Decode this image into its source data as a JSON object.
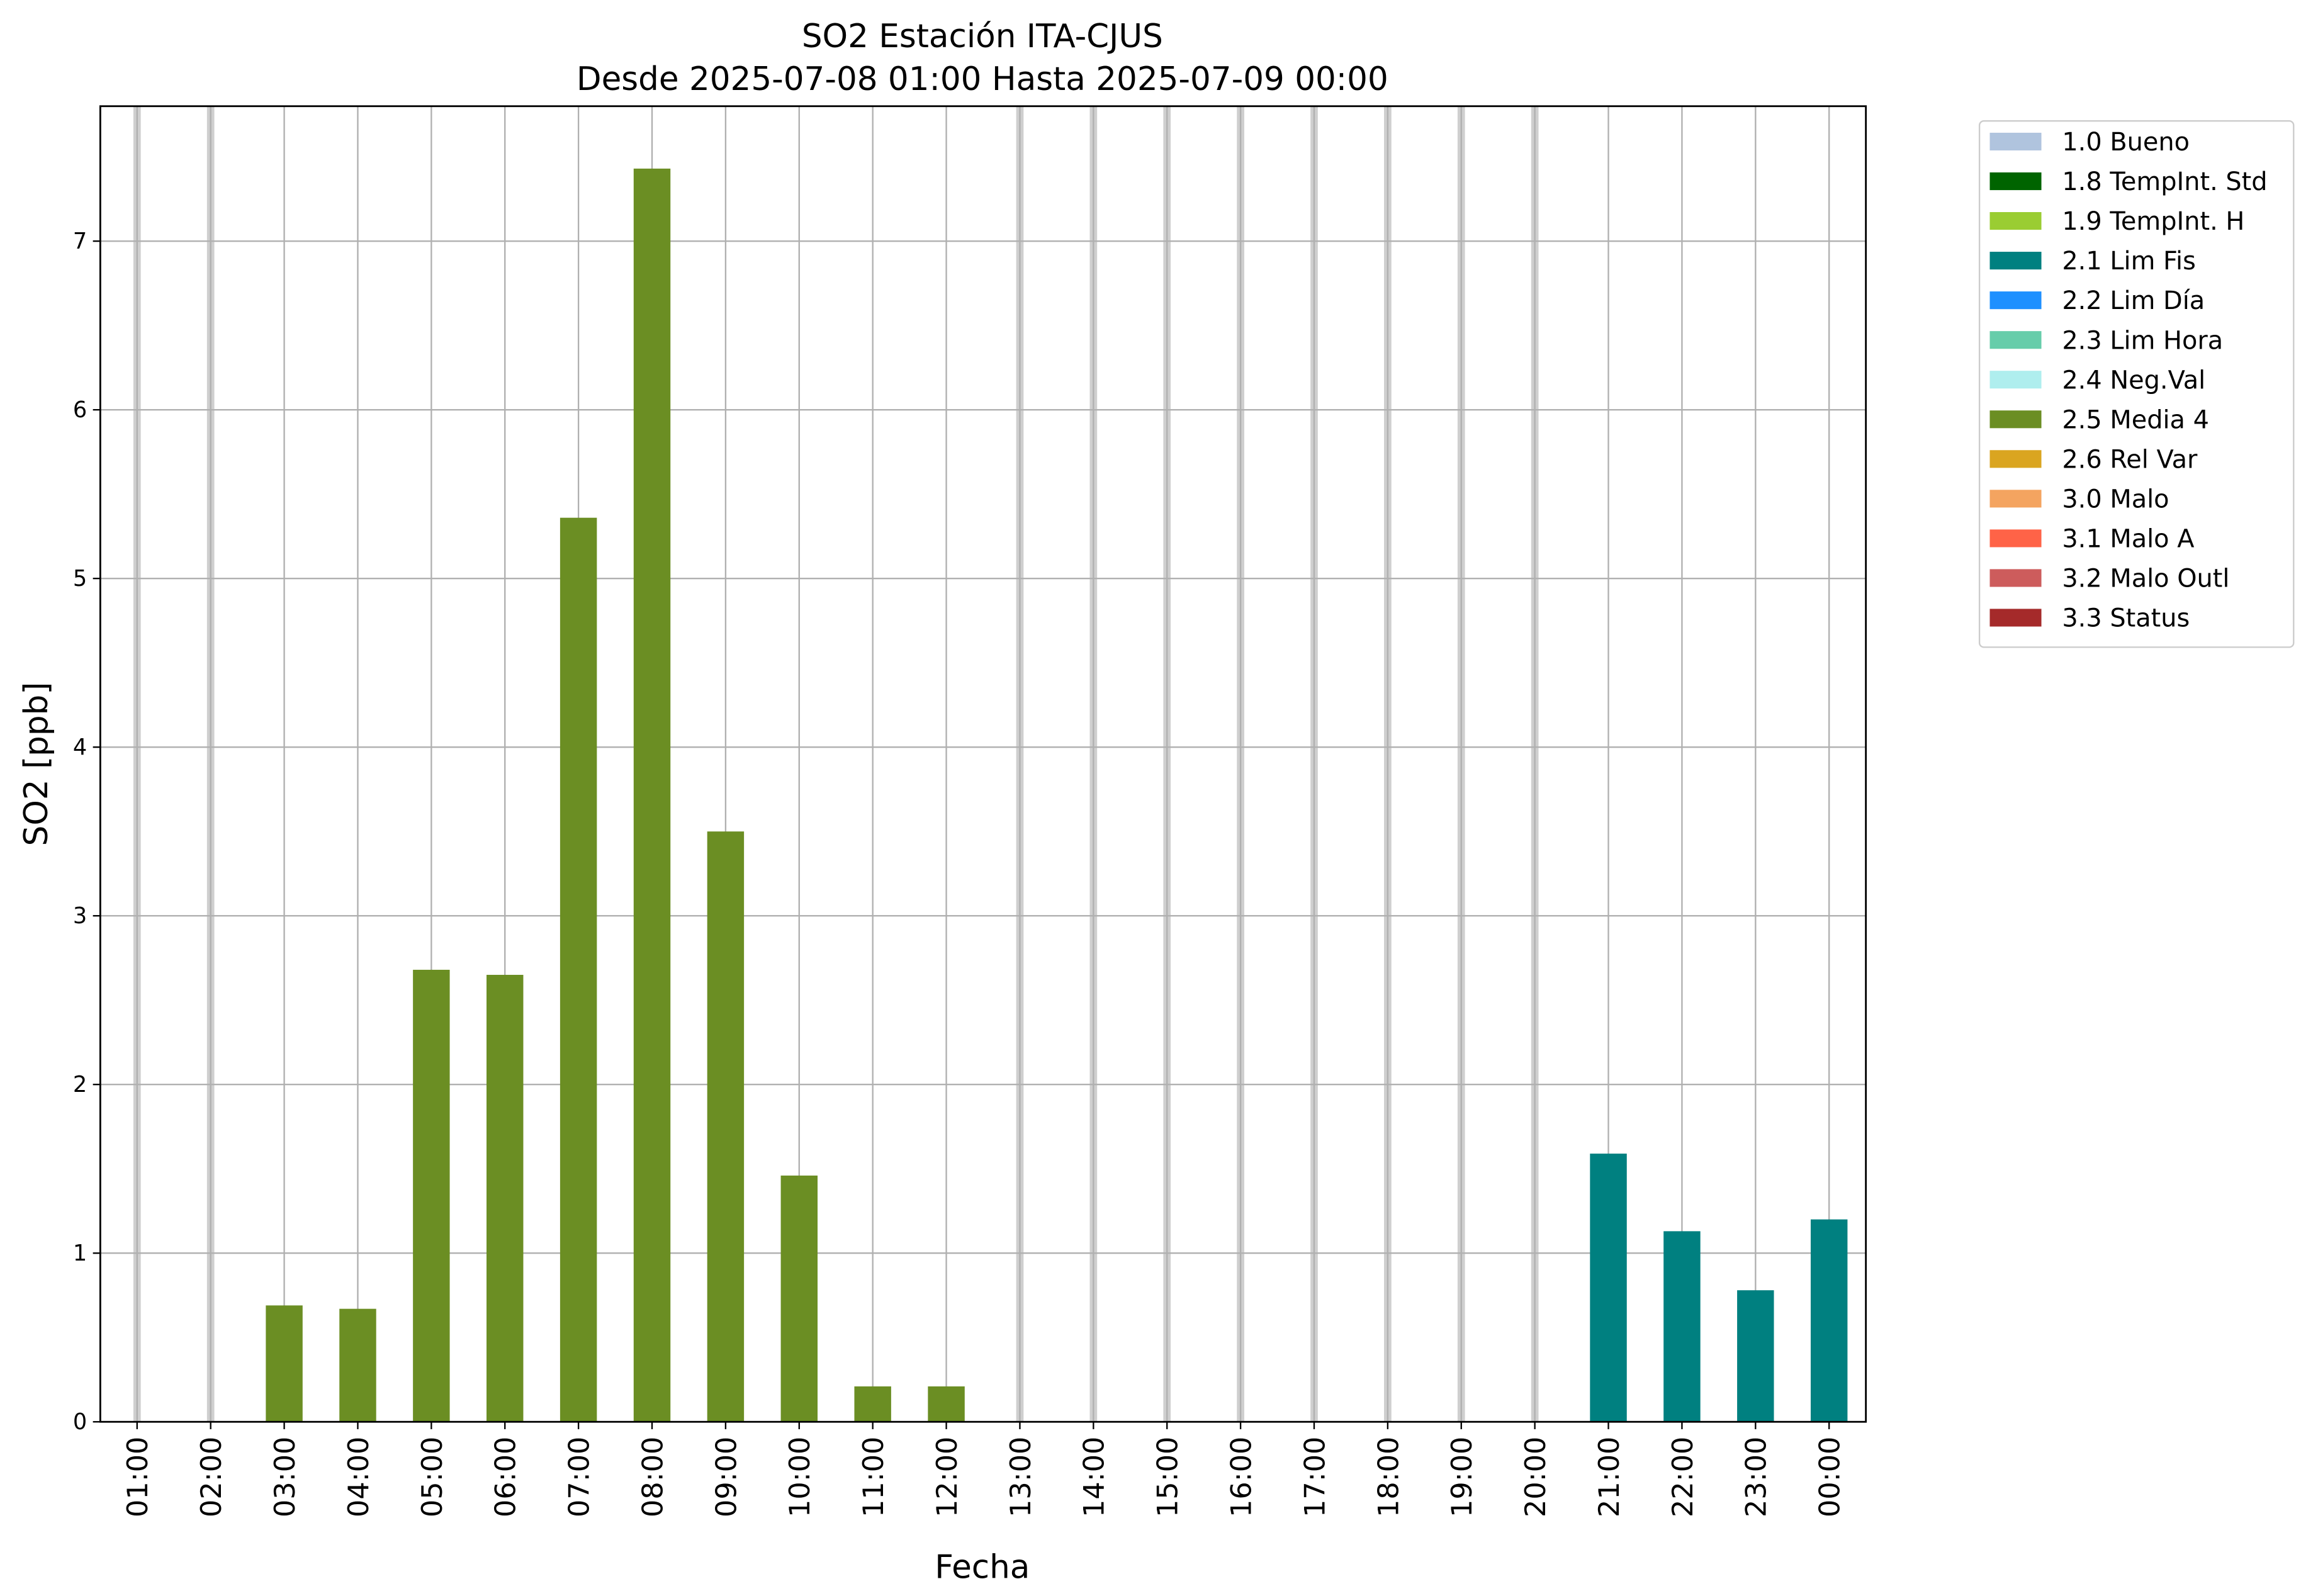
{
  "chart_data": {
    "type": "bar",
    "title": "SO2 Estación ITA-CJUS",
    "subtitle": "Desde 2025-07-08 01:00 Hasta 2025-07-09 00:00",
    "x_label": "Fecha",
    "y_label": "SO2 [ppb]",
    "categories": [
      "01:00",
      "02:00",
      "03:00",
      "04:00",
      "05:00",
      "06:00",
      "07:00",
      "08:00",
      "09:00",
      "10:00",
      "11:00",
      "12:00",
      "13:00",
      "14:00",
      "15:00",
      "16:00",
      "17:00",
      "18:00",
      "19:00",
      "20:00",
      "21:00",
      "22:00",
      "23:00",
      "00:00"
    ],
    "ylim": [
      0,
      7.8
    ],
    "yticks": [
      0,
      1,
      2,
      3,
      4,
      5,
      6,
      7
    ],
    "grid": true,
    "legend": "outside-upper-right",
    "series": [
      {
        "name": "1.0 Bueno",
        "color": "#b0c4de",
        "values": [
          null,
          null,
          null,
          null,
          null,
          null,
          null,
          null,
          null,
          null,
          null,
          null,
          null,
          null,
          null,
          null,
          null,
          null,
          null,
          null,
          null,
          null,
          null,
          null
        ]
      },
      {
        "name": "1.8 TempInt. Std",
        "color": "#006400",
        "values": [
          null,
          null,
          null,
          null,
          null,
          null,
          null,
          null,
          null,
          null,
          null,
          null,
          null,
          null,
          null,
          null,
          null,
          null,
          null,
          null,
          null,
          null,
          null,
          null
        ]
      },
      {
        "name": "1.9 TempInt. H",
        "color": "#9acd32",
        "values": [
          null,
          null,
          null,
          null,
          null,
          null,
          null,
          null,
          null,
          null,
          null,
          null,
          null,
          null,
          null,
          null,
          null,
          null,
          null,
          null,
          null,
          null,
          null,
          null
        ]
      },
      {
        "name": "2.1 Lim Fis",
        "color": "#008080",
        "values": [
          null,
          null,
          null,
          null,
          null,
          null,
          null,
          null,
          null,
          null,
          null,
          null,
          null,
          null,
          null,
          null,
          null,
          null,
          null,
          null,
          1.59,
          1.13,
          0.78,
          1.2
        ]
      },
      {
        "name": "2.2 Lim Día",
        "color": "#1e90ff",
        "values": [
          null,
          null,
          null,
          null,
          null,
          null,
          null,
          null,
          null,
          null,
          null,
          null,
          null,
          null,
          null,
          null,
          null,
          null,
          null,
          null,
          null,
          null,
          null,
          null
        ]
      },
      {
        "name": "2.3 Lim Hora",
        "color": "#66cdaa",
        "values": [
          null,
          null,
          null,
          null,
          null,
          null,
          null,
          null,
          null,
          null,
          null,
          null,
          null,
          null,
          null,
          null,
          null,
          null,
          null,
          null,
          null,
          null,
          null,
          null
        ]
      },
      {
        "name": "2.4 Neg.Val",
        "color": "#afeeee",
        "values": [
          null,
          null,
          null,
          null,
          null,
          null,
          null,
          null,
          null,
          null,
          null,
          null,
          null,
          null,
          null,
          null,
          null,
          null,
          null,
          null,
          null,
          null,
          null,
          null
        ]
      },
      {
        "name": "2.5 Media 4",
        "color": "#6b8e23",
        "values": [
          null,
          null,
          0.69,
          0.67,
          2.68,
          2.65,
          5.36,
          7.43,
          3.5,
          1.46,
          0.21,
          0.21,
          null,
          null,
          null,
          null,
          null,
          null,
          null,
          null,
          null,
          null,
          null,
          null
        ]
      },
      {
        "name": "2.6 Rel Var",
        "color": "#daa520",
        "values": [
          null,
          null,
          null,
          null,
          null,
          null,
          null,
          null,
          null,
          null,
          null,
          null,
          null,
          null,
          null,
          null,
          null,
          null,
          null,
          null,
          null,
          null,
          null,
          null
        ]
      },
      {
        "name": "3.0 Malo",
        "color": "#f4a460",
        "values": [
          null,
          null,
          null,
          null,
          null,
          null,
          null,
          null,
          null,
          null,
          null,
          null,
          null,
          null,
          null,
          null,
          null,
          null,
          null,
          null,
          null,
          null,
          null,
          null
        ]
      },
      {
        "name": "3.1 Malo A",
        "color": "#ff6347",
        "values": [
          null,
          null,
          null,
          null,
          null,
          null,
          null,
          null,
          null,
          null,
          null,
          null,
          null,
          null,
          null,
          null,
          null,
          null,
          null,
          null,
          null,
          null,
          null,
          null
        ]
      },
      {
        "name": "3.2 Malo Outl",
        "color": "#cd5c5c",
        "values": [
          null,
          null,
          null,
          null,
          null,
          null,
          null,
          null,
          null,
          null,
          null,
          null,
          null,
          null,
          null,
          null,
          null,
          null,
          null,
          null,
          null,
          null,
          null,
          null
        ]
      },
      {
        "name": "3.3 Status",
        "color": "#a52a2a",
        "values": [
          null,
          null,
          null,
          null,
          null,
          null,
          null,
          null,
          null,
          null,
          null,
          null,
          null,
          null,
          null,
          null,
          null,
          null,
          null,
          null,
          null,
          null,
          null,
          null
        ]
      }
    ]
  }
}
